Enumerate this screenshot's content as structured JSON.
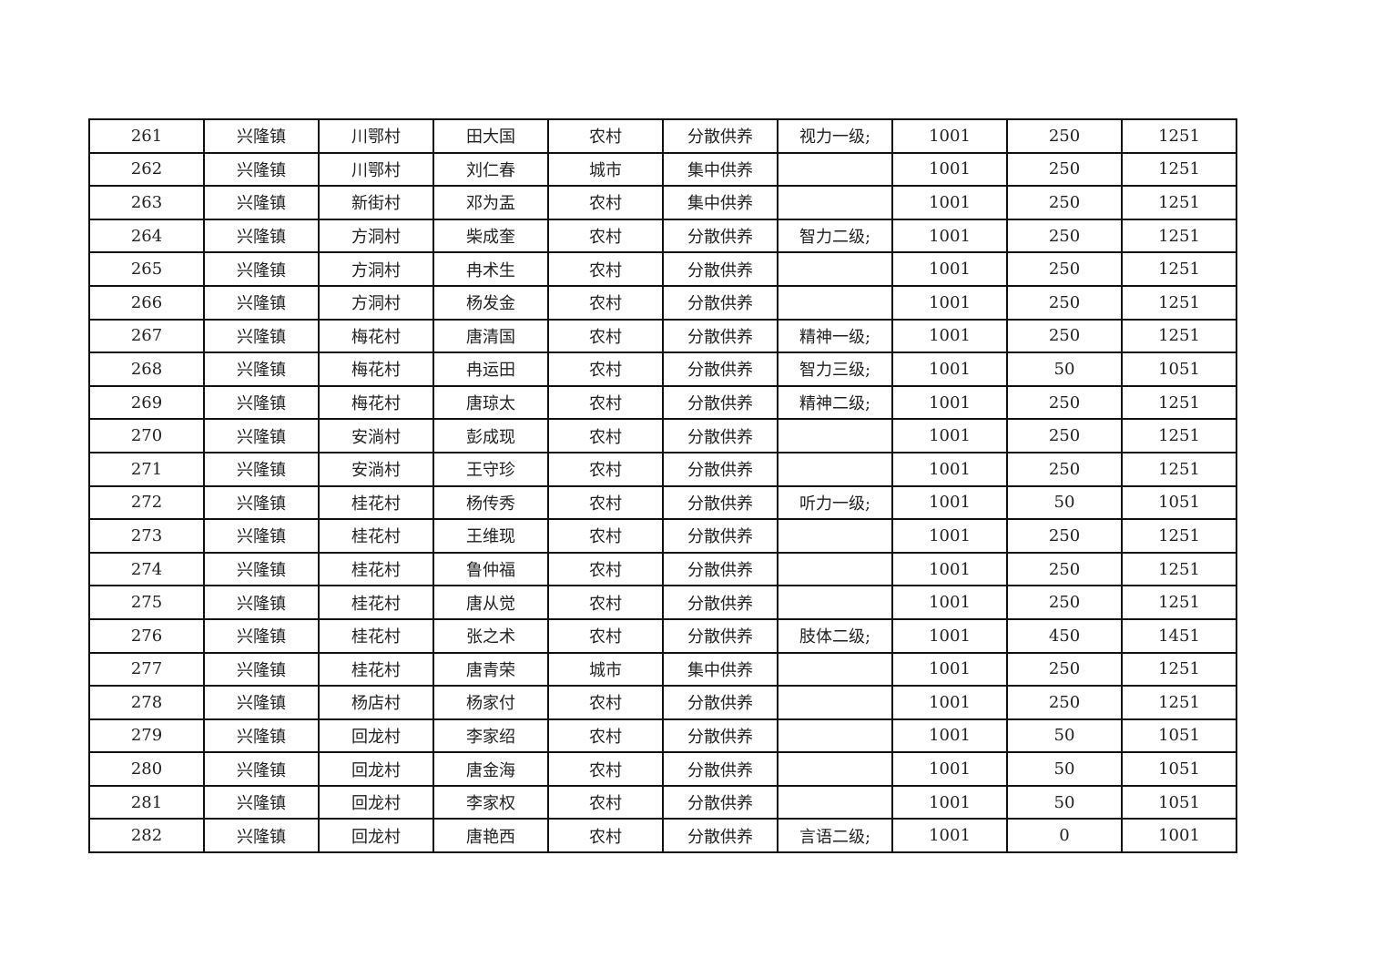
{
  "rows": [
    [
      "261",
      "兴隆镇",
      "川鄂村",
      "田大国",
      "农村",
      "分散供养",
      "视力一级;",
      "1001",
      "250",
      "1251"
    ],
    [
      "262",
      "兴隆镇",
      "川鄂村",
      "刘仁春",
      "城市",
      "集中供养",
      "",
      "1001",
      "250",
      "1251"
    ],
    [
      "263",
      "兴隆镇",
      "新街村",
      "邓为盂",
      "农村",
      "集中供养",
      "",
      "1001",
      "250",
      "1251"
    ],
    [
      "264",
      "兴隆镇",
      "方洞村",
      "柴成奎",
      "农村",
      "分散供养",
      "智力二级;",
      "1001",
      "250",
      "1251"
    ],
    [
      "265",
      "兴隆镇",
      "方洞村",
      "冉术生",
      "农村",
      "分散供养",
      "",
      "1001",
      "250",
      "1251"
    ],
    [
      "266",
      "兴隆镇",
      "方洞村",
      "杨发金",
      "农村",
      "分散供养",
      "",
      "1001",
      "250",
      "1251"
    ],
    [
      "267",
      "兴隆镇",
      "梅花村",
      "唐清国",
      "农村",
      "分散供养",
      "精神一级;",
      "1001",
      "250",
      "1251"
    ],
    [
      "268",
      "兴隆镇",
      "梅花村",
      "冉运田",
      "农村",
      "分散供养",
      "智力三级;",
      "1001",
      "50",
      "1051"
    ],
    [
      "269",
      "兴隆镇",
      "梅花村",
      "唐琼太",
      "农村",
      "分散供养",
      "精神二级;",
      "1001",
      "250",
      "1251"
    ],
    [
      "270",
      "兴隆镇",
      "安淌村",
      "彭成现",
      "农村",
      "分散供养",
      "",
      "1001",
      "250",
      "1251"
    ],
    [
      "271",
      "兴隆镇",
      "安淌村",
      "王守珍",
      "农村",
      "分散供养",
      "",
      "1001",
      "250",
      "1251"
    ],
    [
      "272",
      "兴隆镇",
      "桂花村",
      "杨传秀",
      "农村",
      "分散供养",
      "听力一级;",
      "1001",
      "50",
      "1051"
    ],
    [
      "273",
      "兴隆镇",
      "桂花村",
      "王维现",
      "农村",
      "分散供养",
      "",
      "1001",
      "250",
      "1251"
    ],
    [
      "274",
      "兴隆镇",
      "桂花村",
      "鲁仲福",
      "农村",
      "分散供养",
      "",
      "1001",
      "250",
      "1251"
    ],
    [
      "275",
      "兴隆镇",
      "桂花村",
      "唐从觉",
      "农村",
      "分散供养",
      "",
      "1001",
      "250",
      "1251"
    ],
    [
      "276",
      "兴隆镇",
      "桂花村",
      "张之术",
      "农村",
      "分散供养",
      "肢体二级;",
      "1001",
      "450",
      "1451"
    ],
    [
      "277",
      "兴隆镇",
      "桂花村",
      "唐青荣",
      "城市",
      "集中供养",
      "",
      "1001",
      "250",
      "1251"
    ],
    [
      "278",
      "兴隆镇",
      "杨店村",
      "杨家付",
      "农村",
      "分散供养",
      "",
      "1001",
      "250",
      "1251"
    ],
    [
      "279",
      "兴隆镇",
      "回龙村",
      "李家绍",
      "农村",
      "分散供养",
      "",
      "1001",
      "50",
      "1051"
    ],
    [
      "280",
      "兴隆镇",
      "回龙村",
      "唐金海",
      "农村",
      "分散供养",
      "",
      "1001",
      "50",
      "1051"
    ],
    [
      "281",
      "兴隆镇",
      "回龙村",
      "李家权",
      "农村",
      "分散供养",
      "",
      "1001",
      "50",
      "1051"
    ],
    [
      "282",
      "兴隆镇",
      "回龙村",
      "唐艳西",
      "农村",
      "分散供养",
      "言语二级;",
      "1001",
      "0",
      "1001"
    ]
  ]
}
